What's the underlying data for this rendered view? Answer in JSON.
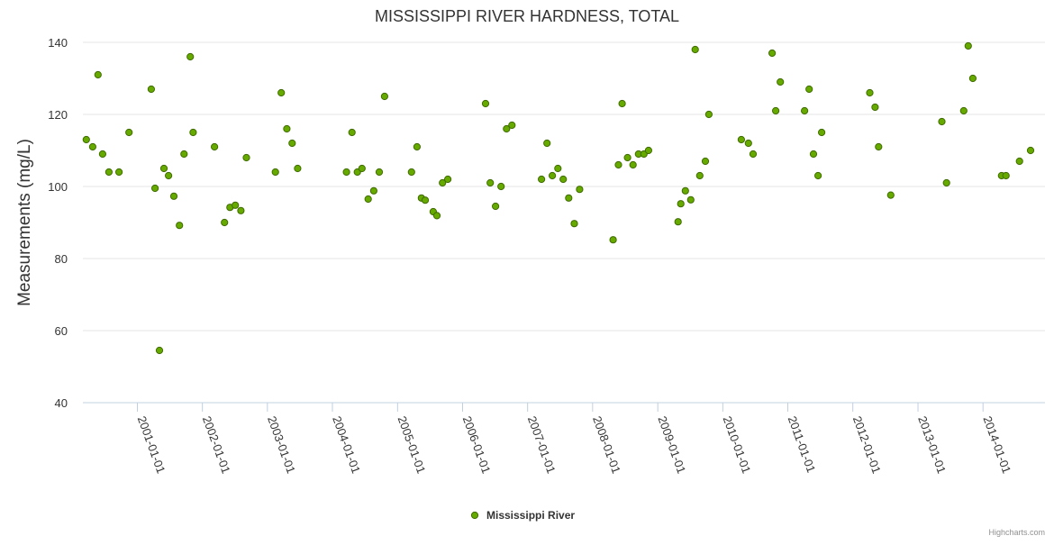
{
  "chart_data": {
    "type": "scatter",
    "title": "MISSISSIPPI RIVER HARDNESS, TOTAL",
    "xlabel": "",
    "ylabel": "Measurements (mg/L)",
    "x_type": "date",
    "xlim": [
      "2000-03-01",
      "2014-12-15"
    ],
    "ylim": [
      40,
      140
    ],
    "y_ticks": [
      40,
      60,
      80,
      100,
      120,
      140
    ],
    "x_ticks": [
      "2001-01-01",
      "2002-01-01",
      "2003-01-01",
      "2004-01-01",
      "2005-01-01",
      "2006-01-01",
      "2007-01-01",
      "2008-01-01",
      "2009-01-01",
      "2010-01-01",
      "2011-01-01",
      "2012-01-01",
      "2013-01-01",
      "2014-01-01"
    ],
    "grid": true,
    "legend_position": "bottom-center",
    "series": [
      {
        "name": "Mississippi River",
        "color": "#66aa00",
        "points": [
          [
            "2000-03-20",
            113
          ],
          [
            "2000-04-25",
            111
          ],
          [
            "2000-05-25",
            131
          ],
          [
            "2000-06-20",
            109
          ],
          [
            "2000-07-25",
            104
          ],
          [
            "2000-09-20",
            104
          ],
          [
            "2000-11-15",
            115
          ],
          [
            "2001-03-20",
            127
          ],
          [
            "2001-04-10",
            99.5
          ],
          [
            "2001-05-05",
            54.5
          ],
          [
            "2001-05-30",
            105
          ],
          [
            "2001-06-25",
            103
          ],
          [
            "2001-07-25",
            97.3
          ],
          [
            "2001-08-25",
            89.2
          ],
          [
            "2001-09-20",
            109
          ],
          [
            "2001-10-25",
            136
          ],
          [
            "2001-11-10",
            115
          ],
          [
            "2002-03-10",
            111
          ],
          [
            "2002-05-05",
            90
          ],
          [
            "2002-06-05",
            94.2
          ],
          [
            "2002-07-05",
            94.8
          ],
          [
            "2002-08-05",
            93.3
          ],
          [
            "2002-09-05",
            108
          ],
          [
            "2003-02-15",
            104
          ],
          [
            "2003-03-20",
            126
          ],
          [
            "2003-04-20",
            116
          ],
          [
            "2003-05-20",
            112
          ],
          [
            "2003-06-20",
            105
          ],
          [
            "2004-03-20",
            104
          ],
          [
            "2004-04-20",
            115
          ],
          [
            "2004-05-20",
            104
          ],
          [
            "2004-06-15",
            105
          ],
          [
            "2004-07-20",
            96.5
          ],
          [
            "2004-08-20",
            98.8
          ],
          [
            "2004-09-20",
            104
          ],
          [
            "2004-10-20",
            125
          ],
          [
            "2005-03-20",
            104
          ],
          [
            "2005-04-20",
            111
          ],
          [
            "2005-05-15",
            96.8
          ],
          [
            "2005-06-05",
            96.2
          ],
          [
            "2005-07-20",
            93
          ],
          [
            "2005-08-10",
            91.9
          ],
          [
            "2005-09-10",
            101
          ],
          [
            "2005-10-10",
            102
          ],
          [
            "2006-05-10",
            123
          ],
          [
            "2006-06-05",
            101
          ],
          [
            "2006-07-05",
            94.5
          ],
          [
            "2006-08-05",
            100
          ],
          [
            "2006-09-05",
            116
          ],
          [
            "2006-10-05",
            117
          ],
          [
            "2007-03-20",
            102
          ],
          [
            "2007-04-20",
            112
          ],
          [
            "2007-05-20",
            103
          ],
          [
            "2007-06-20",
            105
          ],
          [
            "2007-07-20",
            102
          ],
          [
            "2007-08-20",
            96.8
          ],
          [
            "2007-09-20",
            89.7
          ],
          [
            "2007-10-20",
            99.2
          ],
          [
            "2008-04-25",
            85.2
          ],
          [
            "2008-05-25",
            106
          ],
          [
            "2008-06-15",
            123
          ],
          [
            "2008-07-15",
            108
          ],
          [
            "2008-08-15",
            106
          ],
          [
            "2008-09-15",
            109
          ],
          [
            "2008-10-15",
            109
          ],
          [
            "2008-11-10",
            110
          ],
          [
            "2009-04-25",
            90.2
          ],
          [
            "2009-05-10",
            95.2
          ],
          [
            "2009-06-05",
            98.8
          ],
          [
            "2009-07-05",
            96.3
          ],
          [
            "2009-07-30",
            138
          ],
          [
            "2009-08-25",
            103
          ],
          [
            "2009-09-25",
            107
          ],
          [
            "2009-10-15",
            120
          ],
          [
            "2010-04-15",
            113
          ],
          [
            "2010-05-25",
            112
          ],
          [
            "2010-06-20",
            109
          ],
          [
            "2010-10-05",
            137
          ],
          [
            "2010-10-25",
            121
          ],
          [
            "2010-11-20",
            129
          ],
          [
            "2011-04-05",
            121
          ],
          [
            "2011-05-01",
            127
          ],
          [
            "2011-05-25",
            109
          ],
          [
            "2011-06-20",
            103
          ],
          [
            "2011-07-10",
            115
          ],
          [
            "2012-04-05",
            126
          ],
          [
            "2012-05-05",
            122
          ],
          [
            "2012-05-25",
            111
          ],
          [
            "2012-08-01",
            97.6
          ],
          [
            "2013-05-15",
            118
          ],
          [
            "2013-06-10",
            101
          ],
          [
            "2013-09-15",
            121
          ],
          [
            "2013-10-10",
            139
          ],
          [
            "2013-11-05",
            130
          ],
          [
            "2014-04-15",
            103
          ],
          [
            "2014-05-10",
            103
          ],
          [
            "2014-07-25",
            107
          ],
          [
            "2014-09-25",
            110
          ]
        ]
      }
    ],
    "credits": "Highcharts.com"
  }
}
